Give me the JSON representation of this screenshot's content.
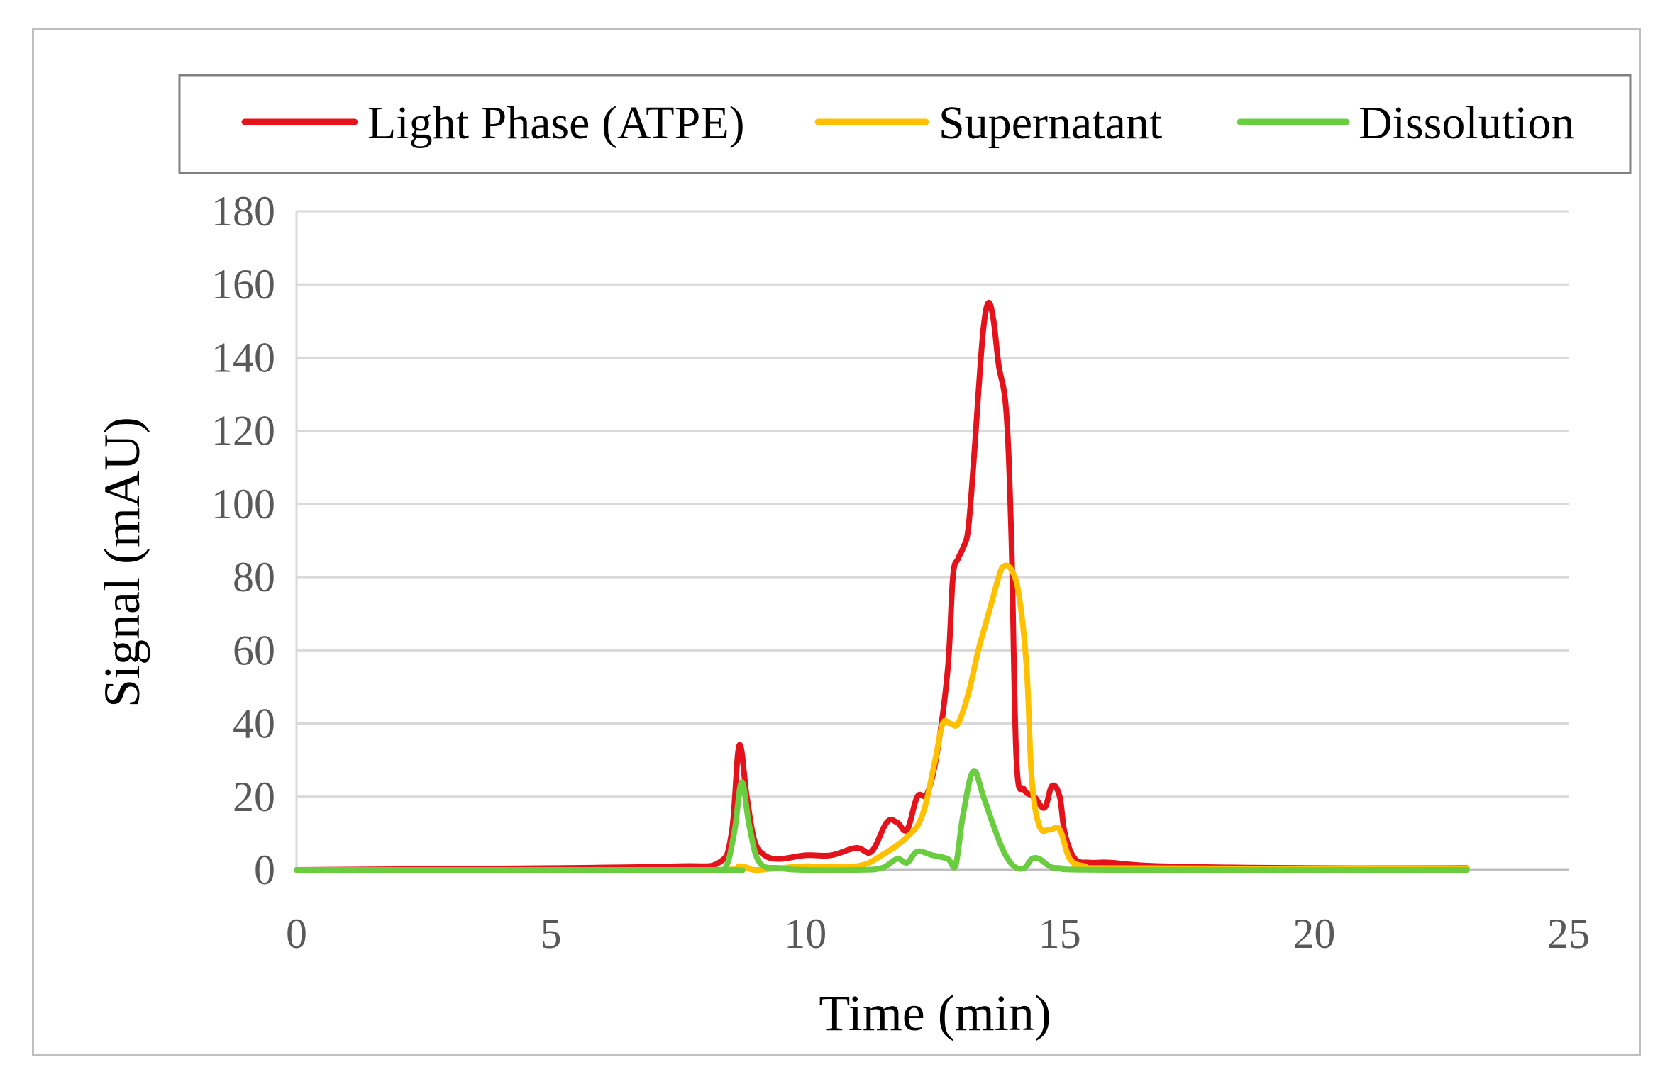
{
  "chart_data": {
    "type": "line",
    "title": "",
    "xlabel": "Time (min)",
    "ylabel": "Signal (mAU)",
    "xlim": [
      0,
      25
    ],
    "ylim": [
      0,
      180
    ],
    "xticks": [
      0,
      5,
      10,
      15,
      20,
      25
    ],
    "yticks": [
      0,
      20,
      40,
      60,
      80,
      100,
      120,
      140,
      160,
      180
    ],
    "grid": "horizontal",
    "legend_position": "top",
    "series": [
      {
        "name": "Light Phase (ATPE)",
        "color": "#e3121b",
        "x": [
          0,
          5,
          7.5,
          8.3,
          8.55,
          8.7,
          8.85,
          9.0,
          9.2,
          9.5,
          10.0,
          10.5,
          11.0,
          11.3,
          11.6,
          11.8,
          12.0,
          12.2,
          12.4,
          12.6,
          12.8,
          12.9,
          13.0,
          13.1,
          13.2,
          13.3,
          13.4,
          13.5,
          13.6,
          13.7,
          13.8,
          13.95,
          14.05,
          14.15,
          14.3,
          14.5,
          14.7,
          14.85,
          15.0,
          15.1,
          15.3,
          15.6,
          16.0,
          17.0,
          20.0,
          23.0
        ],
        "values": [
          0,
          0.5,
          1,
          2,
          10,
          34,
          20,
          8,
          4,
          3,
          4,
          4,
          6,
          5,
          13,
          13,
          11,
          20,
          21,
          33,
          55,
          80,
          85,
          88,
          93,
          110,
          130,
          148,
          155,
          150,
          138,
          125,
          90,
          30,
          22,
          20,
          17,
          23,
          20,
          10,
          3,
          2,
          2,
          1,
          0.5,
          0.5
        ]
      },
      {
        "name": "Supernatant",
        "color": "#ffc000",
        "x": [
          0,
          8.0,
          8.7,
          9.0,
          9.5,
          10.0,
          11.0,
          11.5,
          12.0,
          12.3,
          12.55,
          12.7,
          12.85,
          13.0,
          13.2,
          13.4,
          13.6,
          13.8,
          13.9,
          14.05,
          14.2,
          14.35,
          14.45,
          14.6,
          14.8,
          15.0,
          15.2,
          15.5,
          16.0,
          23.0
        ],
        "values": [
          0,
          0,
          1,
          0,
          0.5,
          1,
          1,
          4,
          9,
          15,
          30,
          40,
          40,
          40,
          48,
          60,
          70,
          80,
          83,
          82,
          75,
          55,
          25,
          12,
          11,
          11,
          3,
          1,
          0.5,
          0.3
        ]
      },
      {
        "name": "Dissolution",
        "color": "#6acc3f",
        "x": [
          0,
          8.0,
          8.4,
          8.6,
          8.75,
          8.9,
          9.1,
          9.5,
          10.0,
          11.0,
          11.5,
          11.8,
          12.0,
          12.2,
          12.5,
          12.8,
          12.95,
          13.1,
          13.3,
          13.5,
          13.7,
          13.9,
          14.1,
          14.3,
          14.45,
          14.6,
          14.8,
          15.0,
          16.0,
          23.0
        ],
        "values": [
          0,
          0,
          0,
          10,
          24,
          12,
          2,
          0.5,
          0,
          0,
          0.5,
          3,
          2,
          5,
          4,
          3,
          1,
          15,
          27,
          20,
          12,
          5,
          1,
          0.5,
          3,
          3,
          1,
          0.5,
          0,
          0
        ]
      }
    ]
  }
}
